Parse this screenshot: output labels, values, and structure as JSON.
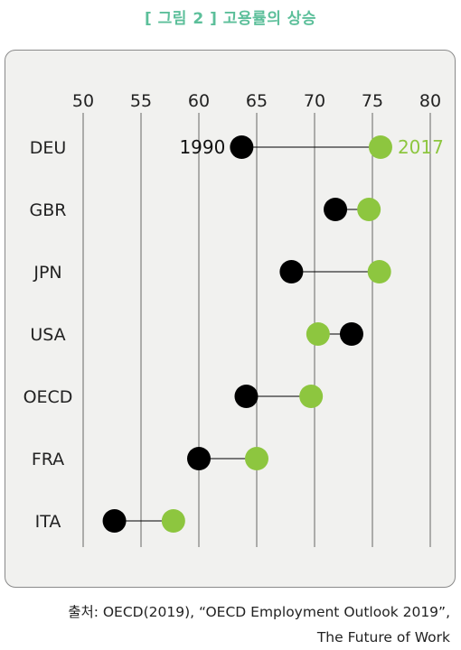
{
  "figure": {
    "title": "[ 그림 2 ] 고용률의 상승",
    "source_line1": "출처: OECD(2019), “OECD Employment Outlook 2019”,",
    "source_line2": "The Future of Work"
  },
  "colors": {
    "title": "#5cbf9a",
    "year_1990": "#000000",
    "year_2017": "#8dc63f",
    "connector": "#000000",
    "gridline": "#666666",
    "panel_bg": "#f1f1ef"
  },
  "chart_data": {
    "type": "dumbbell",
    "title": "",
    "xlabel": "",
    "ylabel": "",
    "x_ticks": [
      50,
      55,
      60,
      65,
      70,
      75,
      80
    ],
    "xlim": [
      50,
      80
    ],
    "x_axis_position": "top",
    "grid": "vertical",
    "categories": [
      "DEU",
      "GBR",
      "JPN",
      "USA",
      "OECD",
      "FRA",
      "ITA"
    ],
    "series": [
      {
        "name": "1990",
        "color": "#000000",
        "values": [
          63.7,
          71.8,
          68.0,
          73.2,
          64.1,
          60.0,
          52.7
        ]
      },
      {
        "name": "2017",
        "color": "#8dc63f",
        "values": [
          75.7,
          74.7,
          75.6,
          70.3,
          69.7,
          65.0,
          57.8
        ]
      }
    ],
    "annotations": [
      {
        "text": "1990",
        "category": "DEU",
        "series": "1990",
        "placement": "left"
      },
      {
        "text": "2017",
        "category": "DEU",
        "series": "2017",
        "placement": "right"
      }
    ]
  }
}
